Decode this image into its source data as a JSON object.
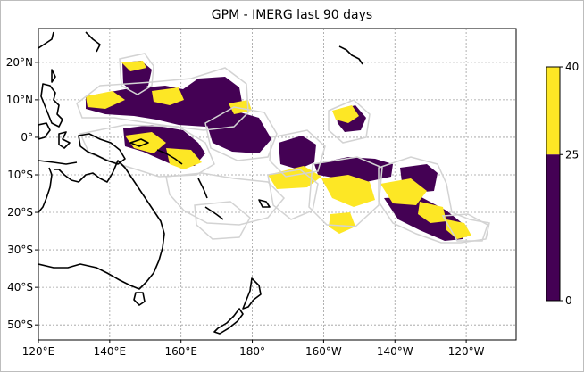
{
  "title": "GPM - IMERG last 90 days",
  "map": {
    "lon_range": [
      120,
      254
    ],
    "lat_range": [
      -54,
      29
    ],
    "x_ticks": [
      {
        "lon": 120,
        "label": "120°E"
      },
      {
        "lon": 140,
        "label": "140°E"
      },
      {
        "lon": 160,
        "label": "160°E"
      },
      {
        "lon": 180,
        "label": "180°"
      },
      {
        "lon": 200,
        "label": "160°W"
      },
      {
        "lon": 220,
        "label": "140°W"
      },
      {
        "lon": 240,
        "label": "120°W"
      }
    ],
    "y_ticks": [
      {
        "lat": 20,
        "label": "20°N"
      },
      {
        "lat": 10,
        "label": "10°N"
      },
      {
        "lat": 0,
        "label": "0°"
      },
      {
        "lat": -10,
        "label": "10°S"
      },
      {
        "lat": -20,
        "label": "20°S"
      },
      {
        "lat": -30,
        "label": "30°S"
      },
      {
        "lat": -40,
        "label": "40°S"
      },
      {
        "lat": -50,
        "label": "50°S"
      }
    ],
    "grid": true,
    "colors": {
      "low_class": "#440154",
      "high_class": "#fde725",
      "eez_outline": "#d3d3d3",
      "coastline": "#000000",
      "grid": "#9e9e9e"
    }
  },
  "colorbar": {
    "ticks": [
      {
        "value": 0,
        "label": "0"
      },
      {
        "value": 25,
        "label": "25"
      },
      {
        "value": 40,
        "label": "40"
      }
    ],
    "classes": [
      {
        "from": 0,
        "to": 25,
        "color": "#440154"
      },
      {
        "from": 25,
        "to": 40,
        "color": "#fde725"
      }
    ]
  }
}
